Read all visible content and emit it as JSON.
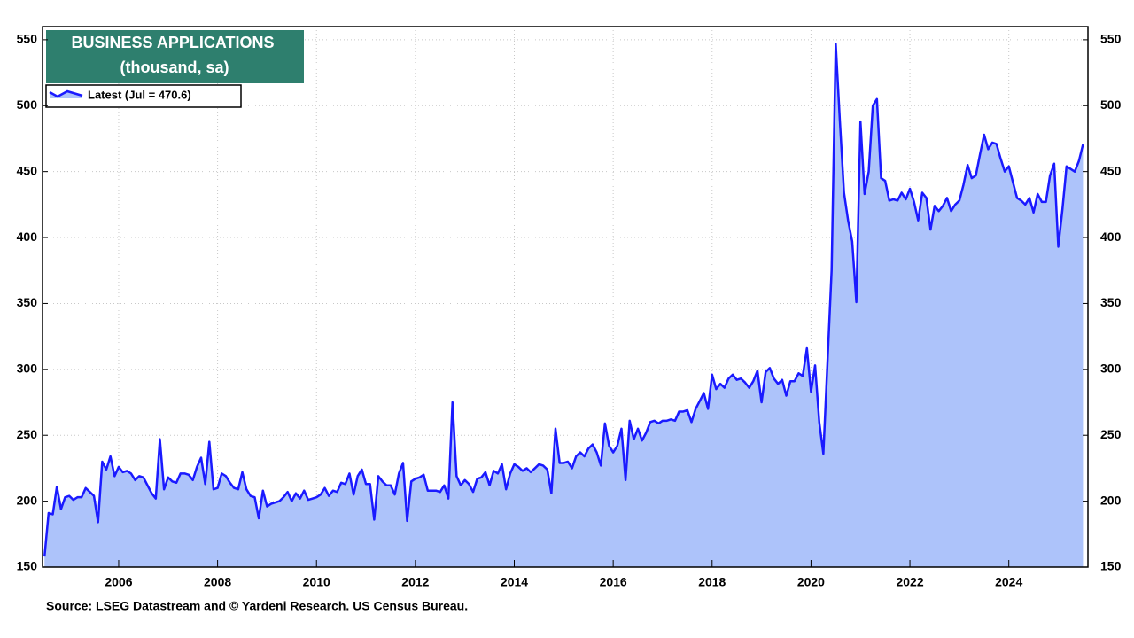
{
  "chart_data": {
    "type": "area",
    "title": "BUSINESS APPLICATIONS",
    "subtitle": "(thousand, sa)",
    "source": "Source: LSEG Datastream and © Yardeni Research. US Census Bureau.",
    "grid": true,
    "xlim": [
      2004.46,
      2025.6
    ],
    "xticks": [
      2006,
      2008,
      2010,
      2012,
      2014,
      2016,
      2018,
      2020,
      2022,
      2024
    ],
    "ylim": [
      150,
      560
    ],
    "yticks": [
      150,
      200,
      250,
      300,
      350,
      400,
      450,
      500,
      550
    ],
    "x": [
      2004.5,
      2004.583,
      2004.667,
      2004.75,
      2004.833,
      2004.917,
      2005,
      2005.083,
      2005.167,
      2005.25,
      2005.333,
      2005.417,
      2005.5,
      2005.583,
      2005.667,
      2005.75,
      2005.833,
      2005.917,
      2006,
      2006.083,
      2006.167,
      2006.25,
      2006.333,
      2006.417,
      2006.5,
      2006.583,
      2006.667,
      2006.75,
      2006.833,
      2006.917,
      2007,
      2007.083,
      2007.167,
      2007.25,
      2007.333,
      2007.417,
      2007.5,
      2007.583,
      2007.667,
      2007.75,
      2007.833,
      2007.917,
      2008,
      2008.083,
      2008.167,
      2008.25,
      2008.333,
      2008.417,
      2008.5,
      2008.583,
      2008.667,
      2008.75,
      2008.833,
      2008.917,
      2009,
      2009.083,
      2009.167,
      2009.25,
      2009.333,
      2009.417,
      2009.5,
      2009.583,
      2009.667,
      2009.75,
      2009.833,
      2009.917,
      2010,
      2010.083,
      2010.167,
      2010.25,
      2010.333,
      2010.417,
      2010.5,
      2010.583,
      2010.667,
      2010.75,
      2010.833,
      2010.917,
      2011,
      2011.083,
      2011.167,
      2011.25,
      2011.333,
      2011.417,
      2011.5,
      2011.583,
      2011.667,
      2011.75,
      2011.833,
      2011.917,
      2012,
      2012.083,
      2012.167,
      2012.25,
      2012.333,
      2012.417,
      2012.5,
      2012.583,
      2012.667,
      2012.75,
      2012.833,
      2012.917,
      2013,
      2013.083,
      2013.167,
      2013.25,
      2013.333,
      2013.417,
      2013.5,
      2013.583,
      2013.667,
      2013.75,
      2013.833,
      2013.917,
      2014,
      2014.083,
      2014.167,
      2014.25,
      2014.333,
      2014.417,
      2014.5,
      2014.583,
      2014.667,
      2014.75,
      2014.833,
      2014.917,
      2015,
      2015.083,
      2015.167,
      2015.25,
      2015.333,
      2015.417,
      2015.5,
      2015.583,
      2015.667,
      2015.75,
      2015.833,
      2015.917,
      2016,
      2016.083,
      2016.167,
      2016.25,
      2016.333,
      2016.417,
      2016.5,
      2016.583,
      2016.667,
      2016.75,
      2016.833,
      2016.917,
      2017,
      2017.083,
      2017.167,
      2017.25,
      2017.333,
      2017.417,
      2017.5,
      2017.583,
      2017.667,
      2017.75,
      2017.833,
      2017.917,
      2018,
      2018.083,
      2018.167,
      2018.25,
      2018.333,
      2018.417,
      2018.5,
      2018.583,
      2018.667,
      2018.75,
      2018.833,
      2018.917,
      2019,
      2019.083,
      2019.167,
      2019.25,
      2019.333,
      2019.417,
      2019.5,
      2019.583,
      2019.667,
      2019.75,
      2019.833,
      2019.917,
      2020,
      2020.083,
      2020.167,
      2020.25,
      2020.333,
      2020.417,
      2020.5,
      2020.583,
      2020.667,
      2020.75,
      2020.833,
      2020.917,
      2021,
      2021.083,
      2021.167,
      2021.25,
      2021.333,
      2021.417,
      2021.5,
      2021.583,
      2021.667,
      2021.75,
      2021.833,
      2021.917,
      2022,
      2022.083,
      2022.167,
      2022.25,
      2022.333,
      2022.417,
      2022.5,
      2022.583,
      2022.667,
      2022.75,
      2022.833,
      2022.917,
      2023,
      2023.083,
      2023.167,
      2023.25,
      2023.333,
      2023.417,
      2023.5,
      2023.583,
      2023.667,
      2023.75,
      2023.833,
      2023.917,
      2024,
      2024.083,
      2024.167,
      2024.25,
      2024.333,
      2024.417,
      2024.5,
      2024.583,
      2024.667,
      2024.75,
      2024.833,
      2024.917,
      2025,
      2025.083,
      2025.167,
      2025.25,
      2025.333,
      2025.417,
      2025.5
    ],
    "series": [
      {
        "name": "Latest (Jul = 470.6)",
        "color": "#1a1aff",
        "fill": "#adc3fa",
        "values": [
          158,
          191,
          190,
          211,
          194,
          203,
          204,
          201,
          203,
          203,
          210,
          207,
          204,
          184,
          230,
          224,
          234,
          219,
          226,
          222,
          223,
          221,
          216,
          219,
          218,
          212,
          206,
          202,
          247,
          209,
          218,
          215,
          214,
          221,
          221,
          220,
          216,
          226,
          233,
          213,
          245,
          209,
          210,
          221,
          219,
          214,
          210,
          209,
          222,
          209,
          204,
          203,
          187,
          208,
          196,
          198,
          199,
          200,
          203,
          207,
          200,
          206,
          202,
          208,
          201,
          202,
          203,
          205,
          210,
          204,
          208,
          207,
          214,
          213,
          221,
          205,
          219,
          224,
          213,
          213,
          186,
          219,
          215,
          212,
          212,
          205,
          221,
          229,
          185,
          215,
          217,
          218,
          220,
          208,
          208,
          208,
          207,
          212,
          202,
          275,
          219,
          212,
          216,
          213,
          207,
          217,
          218,
          222,
          212,
          223,
          221,
          228,
          209,
          221,
          228,
          226,
          223,
          225,
          222,
          225,
          228,
          227,
          224,
          206,
          255,
          229,
          229,
          230,
          225,
          234,
          237,
          234,
          240,
          243,
          237,
          227,
          259,
          242,
          237,
          242,
          255,
          216,
          261,
          247,
          255,
          246,
          252,
          260,
          261,
          259,
          261,
          261,
          262,
          261,
          268,
          268,
          269,
          260,
          270,
          276,
          282,
          270,
          296,
          285,
          289,
          286,
          293,
          296,
          292,
          293,
          290,
          286,
          291,
          299,
          275,
          298,
          301,
          293,
          289,
          292,
          280,
          291,
          291,
          297,
          295,
          316,
          283,
          303,
          260,
          236,
          305,
          375,
          547,
          489,
          434,
          413,
          397,
          351,
          488,
          433,
          450,
          500,
          505,
          445,
          443,
          428,
          429,
          428,
          434,
          429,
          437,
          427,
          413,
          434,
          430,
          406,
          424,
          420,
          424,
          430,
          420,
          425,
          428,
          440,
          455,
          445,
          447,
          463,
          478,
          467,
          472,
          471,
          460,
          450,
          454,
          442,
          430,
          428,
          425,
          430,
          419,
          433,
          427,
          427,
          447,
          456,
          393,
          421,
          454,
          452,
          450,
          458,
          470.6
        ]
      }
    ]
  }
}
